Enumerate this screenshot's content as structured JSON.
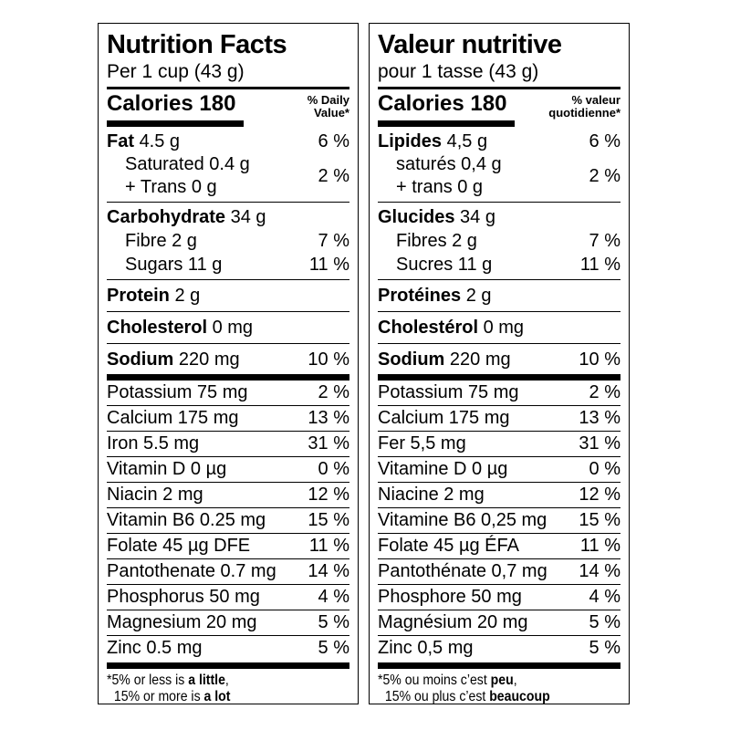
{
  "colors": {
    "text": "#000000",
    "background": "#ffffff",
    "rule": "#000000"
  },
  "panels": [
    {
      "lang": "en",
      "title": "Nutrition Facts",
      "serving": "Per 1 cup (43 g)",
      "calories": {
        "label": "Calories",
        "value": "180"
      },
      "dv_header": {
        "line1": "% Daily",
        "line2": "Value*"
      },
      "fat": {
        "name": "Fat",
        "value": "4.5 g",
        "pct": "6 %"
      },
      "sat_trans": {
        "line1": "Saturated 0.4 g",
        "line2": "+ Trans 0 g",
        "pct": "2 %"
      },
      "carb": {
        "name": "Carbohydrate",
        "value": "34 g"
      },
      "fibre": {
        "text": "Fibre 2 g",
        "pct": "7 %"
      },
      "sugars": {
        "text": "Sugars 11 g",
        "pct": "11 %"
      },
      "protein": {
        "name": "Protein",
        "value": "2 g"
      },
      "cholesterol": {
        "name": "Cholesterol",
        "value": "0 mg"
      },
      "sodium": {
        "name": "Sodium",
        "value": "220 mg",
        "pct": "10 %"
      },
      "micronutrients": [
        {
          "text": "Potassium 75 mg",
          "pct": "2 %"
        },
        {
          "text": "Calcium 175 mg",
          "pct": "13 %"
        },
        {
          "text": "Iron 5.5 mg",
          "pct": "31 %"
        },
        {
          "text": "Vitamin D 0 µg",
          "pct": "0 %"
        },
        {
          "text": "Niacin 2 mg",
          "pct": "12 %"
        },
        {
          "text": "Vitamin B6 0.25 mg",
          "pct": "15 %"
        },
        {
          "text": "Folate 45 µg DFE",
          "pct": "11 %"
        },
        {
          "text": "Pantothenate 0.7 mg",
          "pct": "14 %"
        },
        {
          "text": "Phosphorus 50 mg",
          "pct": "4 %"
        },
        {
          "text": "Magnesium 20 mg",
          "pct": "5 %"
        },
        {
          "text": "Zinc 0.5 mg",
          "pct": "5 %"
        }
      ],
      "footnote": {
        "l1_pre": "*5% or less is ",
        "l1_bold": "a little",
        "l1_post": ",",
        "l2_pre": "15% or more is ",
        "l2_bold": "a lot"
      }
    },
    {
      "lang": "fr",
      "title": "Valeur nutritive",
      "serving": "pour 1 tasse (43 g)",
      "calories": {
        "label": "Calories",
        "value": "180"
      },
      "dv_header": {
        "line1": "% valeur",
        "line2": "quotidienne*"
      },
      "fat": {
        "name": "Lipides",
        "value": "4,5 g",
        "pct": "6 %"
      },
      "sat_trans": {
        "line1": "saturés 0,4 g",
        "line2": "+ trans 0 g",
        "pct": "2 %"
      },
      "carb": {
        "name": "Glucides",
        "value": "34 g"
      },
      "fibre": {
        "text": "Fibres 2 g",
        "pct": "7 %"
      },
      "sugars": {
        "text": "Sucres 11 g",
        "pct": "11 %"
      },
      "protein": {
        "name": "Protéines",
        "value": "2 g"
      },
      "cholesterol": {
        "name": "Cholestérol",
        "value": "0 mg"
      },
      "sodium": {
        "name": "Sodium",
        "value": "220 mg",
        "pct": "10 %"
      },
      "micronutrients": [
        {
          "text": "Potassium 75 mg",
          "pct": "2 %"
        },
        {
          "text": "Calcium 175 mg",
          "pct": "13 %"
        },
        {
          "text": "Fer 5,5 mg",
          "pct": "31 %"
        },
        {
          "text": "Vitamine D 0 µg",
          "pct": "0 %"
        },
        {
          "text": "Niacine 2 mg",
          "pct": "12 %"
        },
        {
          "text": "Vitamine B6 0,25 mg",
          "pct": "15 %"
        },
        {
          "text": "Folate 45 µg ÉFA",
          "pct": "11 %"
        },
        {
          "text": "Pantothénate 0,7 mg",
          "pct": "14 %"
        },
        {
          "text": "Phosphore 50 mg",
          "pct": "4 %"
        },
        {
          "text": "Magnésium 20 mg",
          "pct": "5 %"
        },
        {
          "text": "Zinc 0,5 mg",
          "pct": "5 %"
        }
      ],
      "footnote": {
        "l1_pre": "*5% ou moins c’est ",
        "l1_bold": "peu",
        "l1_post": ",",
        "l2_pre": "15% ou plus c’est ",
        "l2_bold": "beaucoup"
      }
    }
  ]
}
